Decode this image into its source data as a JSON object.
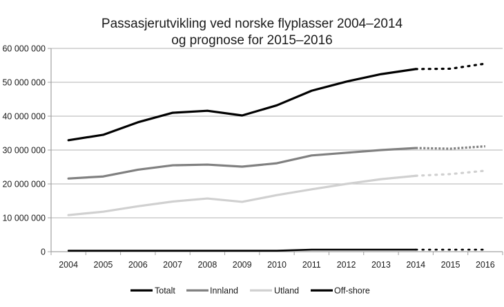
{
  "chart_data": {
    "type": "line",
    "title": [
      "Passasjerutvikling ved norske flyplasser 2004–2014",
      "og prognose for 2015–2016"
    ],
    "xlabel": "",
    "ylabel": "",
    "categories": [
      "2004",
      "2005",
      "2006",
      "2007",
      "2008",
      "2009",
      "2010",
      "2011",
      "2012",
      "2013",
      "2014",
      "2015",
      "2016"
    ],
    "forecast_from_index": 10,
    "ylim": [
      0,
      60000000
    ],
    "yticks": [
      0,
      10000000,
      20000000,
      30000000,
      40000000,
      50000000,
      60000000
    ],
    "ytick_labels": [
      "0",
      "10 000 000",
      "20 000 000",
      "30 000 000",
      "40 000 000",
      "50 000 000",
      "60 000 000"
    ],
    "grid": true,
    "legend_position": "bottom",
    "series": [
      {
        "name": "Totalt",
        "color": "#000000",
        "values": [
          32900000,
          34500000,
          38200000,
          41000000,
          41600000,
          40200000,
          43200000,
          47500000,
          50200000,
          52400000,
          53900000,
          54000000,
          55500000
        ]
      },
      {
        "name": "Innland",
        "color": "#808080",
        "values": [
          21600000,
          22200000,
          24200000,
          25500000,
          25700000,
          25100000,
          26100000,
          28400000,
          29200000,
          30000000,
          30600000,
          30400000,
          31100000
        ]
      },
      {
        "name": "Utland",
        "color": "#d0d0d0",
        "values": [
          10800000,
          11800000,
          13400000,
          14800000,
          15700000,
          14700000,
          16700000,
          18400000,
          20000000,
          21400000,
          22400000,
          22900000,
          23900000
        ]
      },
      {
        "name": "Off-shore",
        "color": "#000000",
        "values": [
          300000,
          300000,
          300000,
          300000,
          300000,
          300000,
          300000,
          600000,
          600000,
          600000,
          600000,
          600000,
          600000
        ]
      }
    ]
  }
}
